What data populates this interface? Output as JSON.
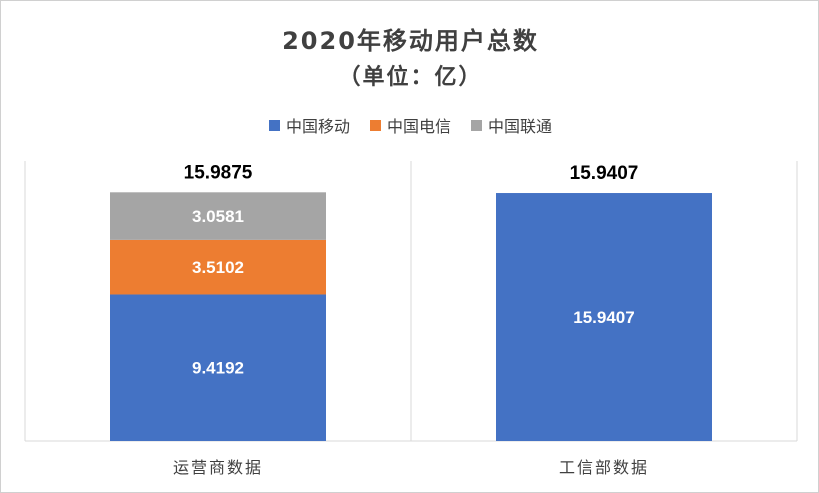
{
  "chart_data": {
    "type": "bar",
    "stacked": true,
    "title": "2020年移动用户总数",
    "subtitle": "（单位：亿）",
    "xlabel": "",
    "ylabel": "",
    "ylim": [
      0,
      18
    ],
    "grid": false,
    "legend_position": "top",
    "categories": [
      "运营商数据",
      "工信部数据"
    ],
    "series": [
      {
        "name": "中国移动",
        "color": "#4472C4",
        "values": [
          9.4192,
          15.9407
        ],
        "labels": [
          "9.4192",
          "15.9407"
        ]
      },
      {
        "name": "中国电信",
        "color": "#ED7D31",
        "values": [
          3.5102,
          0
        ],
        "labels": [
          "3.5102",
          ""
        ]
      },
      {
        "name": "中国联通",
        "color": "#A5A5A5",
        "values": [
          3.0581,
          0
        ],
        "labels": [
          "3.0581",
          ""
        ]
      }
    ],
    "totals": [
      "15.9875",
      "15.9407"
    ]
  }
}
